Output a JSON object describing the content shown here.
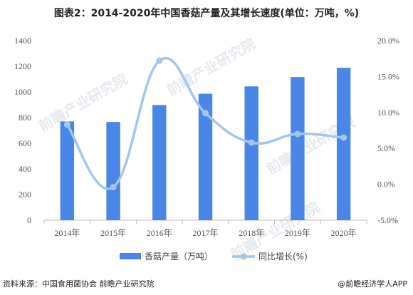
{
  "title": "图表2：2014-2020年中国香菇产量及其增长速度(单位：万吨，%)",
  "source": "资料来源：中国食用菌协会 前瞻产业研究院",
  "brand": "@前瞻经济学人APP",
  "watermark": "前瞻产业研究院",
  "colors": {
    "bar": "#4a86e8",
    "line": "#a4c6ee",
    "axis": "#bfbfbf"
  },
  "chart_data": {
    "type": "bar",
    "categories": [
      "2014年",
      "2015年",
      "2016年",
      "2017年",
      "2018年",
      "2019年",
      "2020年"
    ],
    "series": [
      {
        "name": "香菇产量（万吨）",
        "type": "bar",
        "axis": "left",
        "values": [
          770,
          766,
          898,
          986,
          1043,
          1116,
          1188
        ]
      },
      {
        "name": "同比增长(%)",
        "type": "line",
        "axis": "right",
        "values": [
          8.3,
          -0.4,
          17.2,
          9.9,
          5.8,
          7.0,
          6.5
        ]
      }
    ],
    "y_left": {
      "min": 0,
      "max": 1400,
      "step": 200,
      "ticks": [
        "0",
        "200",
        "400",
        "600",
        "800",
        "1000",
        "1200",
        "1400"
      ]
    },
    "y_right": {
      "min": -5,
      "max": 20,
      "step": 5,
      "ticks": [
        "-5.0%",
        "0.0%",
        "5.0%",
        "10.0%",
        "15.0%",
        "20.0%"
      ]
    },
    "legend": "bottom",
    "grid": false
  }
}
